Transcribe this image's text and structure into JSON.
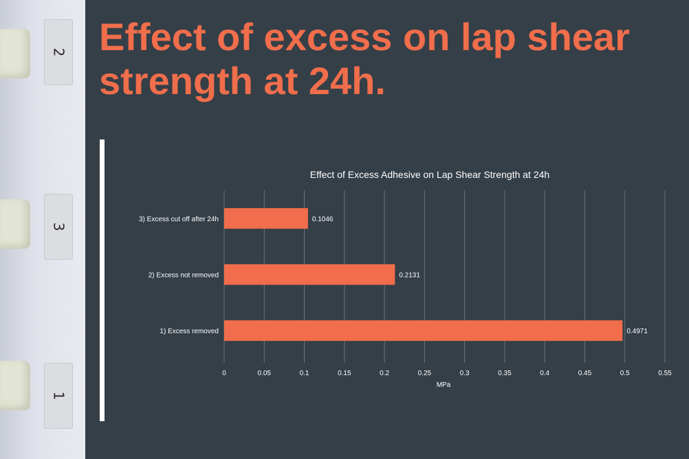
{
  "slide": {
    "title": "Effect of excess on lap shear strength at 24h."
  },
  "photo": {
    "labels": [
      "2",
      "3",
      "1"
    ]
  },
  "colors": {
    "background": "#353f47",
    "title": "#f06e4c",
    "bar": "#f26d4b",
    "grid": "#6b737a",
    "text": "#ffffff"
  },
  "chart_data": {
    "type": "bar",
    "orientation": "horizontal",
    "title": "Effect of Excess Adhesive on Lap Shear Strength at 24h",
    "xlabel": "MPa",
    "ylabel": "",
    "categories": [
      "3) Excess cut off after 24h",
      "2) Excess not removed",
      "1) Excess removed"
    ],
    "values": [
      0.1046,
      0.2131,
      0.4971
    ],
    "value_labels": [
      "0.1046",
      "0.2131",
      "0.4971"
    ],
    "xlim": [
      0,
      0.55
    ],
    "xticks": [
      "0",
      "0.05",
      "0.1",
      "0.15",
      "0.2",
      "0.25",
      "0.3",
      "0.35",
      "0.4",
      "0.45",
      "0.5",
      "0.55"
    ],
    "grid": true,
    "legend": "none"
  }
}
